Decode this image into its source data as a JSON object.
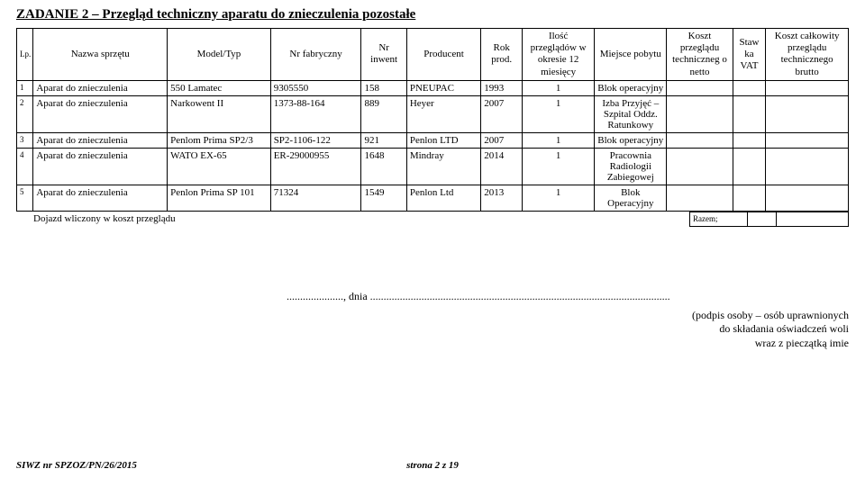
{
  "title": "ZADANIE 2 – Przegląd techniczny aparatu do znieczulenia pozostałe",
  "headers": {
    "lp": "Lp.",
    "nazwa": "Nazwa sprzętu",
    "model": "Model/Typ",
    "fabr": "Nr fabryczny",
    "inwent": "Nr inwent",
    "producent": "Producent",
    "rok": "Rok prod.",
    "ilosc": "Ilość przeglądów w okresie 12 miesięcy",
    "miejsce": "Miejsce pobytu",
    "koszt": "Koszt przeglądu techniczneg o netto",
    "stawka": "Staw ka VAT",
    "kosztc": "Koszt całkowity przeglądu technicznego brutto"
  },
  "rows": [
    {
      "lp": "1",
      "nazwa": "Aparat do znieczulenia",
      "model": "550 Lamatec",
      "fabr": "9305550",
      "inw": "158",
      "prod": "PNEUPAC",
      "rok": "1993",
      "ilosc": "1",
      "miejsce": "Blok operacyjny"
    },
    {
      "lp": "2",
      "nazwa": "Aparat do znieczulenia",
      "model": "Narkowent II",
      "fabr": "1373-88-164",
      "inw": "889",
      "prod": "Heyer",
      "rok": "2007",
      "ilosc": "1",
      "miejsce": "Izba Przyjęć – Szpital Oddz. Ratunkowy"
    },
    {
      "lp": "3",
      "nazwa": "Aparat do znieczulenia",
      "model": "Penlom Prima SP2/3",
      "fabr": "SP2-1106-122",
      "inw": "921",
      "prod": "Penlon LTD",
      "rok": "2007",
      "ilosc": "1",
      "miejsce": "Blok operacyjny"
    },
    {
      "lp": "4",
      "nazwa": "Aparat do znieczulenia",
      "model": "WATO EX-65",
      "fabr": "ER-29000955",
      "inw": "1648",
      "prod": "Mindray",
      "rok": "2014",
      "ilosc": "1",
      "miejsce": "Pracownia Radiologii Zabiegowej"
    },
    {
      "lp": "5",
      "nazwa": "Aparat do znieczulenia",
      "model": "Penlon Prima SP 101",
      "fabr": "71324",
      "inw": "1549",
      "prod": "Penlon Ltd",
      "rok": "2013",
      "ilosc": "1",
      "miejsce": "Blok Operacyjny"
    }
  ],
  "dojazd": "Dojazd wliczony w koszt przeglądu",
  "razem": "Razem;",
  "sig": {
    "date_prefix": "....................., dnia ...............................................................................................................",
    "l1": "(podpis osoby – osób uprawnionych",
    "l2": "do składania oświadczeń woli",
    "l3": "wraz z pieczątką imie"
  },
  "footer": {
    "left": "SIWZ nr SPZOZ/PN/26/2015",
    "right": "strona  2 z 19"
  }
}
